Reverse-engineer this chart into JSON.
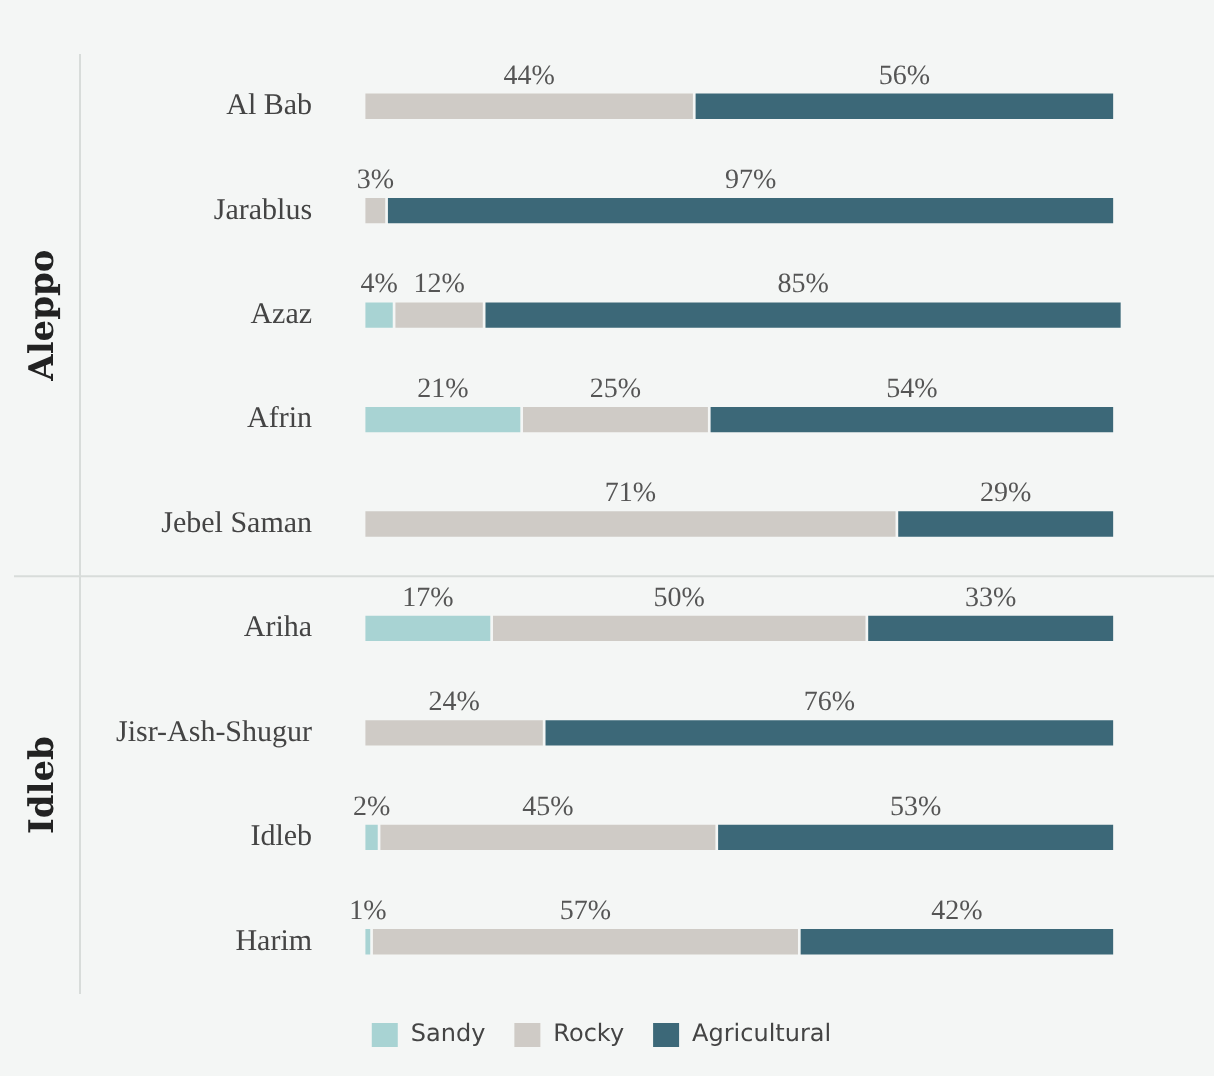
{
  "chart_data": {
    "type": "bar",
    "orientation": "horizontal",
    "stacked": true,
    "legend": "bottom",
    "categories": [
      "Al Bab",
      "Jarablus",
      "Azaz",
      "Afrin",
      "Jebel Saman",
      "Ariha",
      "Jisr-Ash-Shugur",
      "Idleb",
      "Harim"
    ],
    "series": [
      {
        "name": "Sandy",
        "color": "#a8d3d3",
        "values": [
          null,
          null,
          4,
          21,
          null,
          17,
          null,
          2,
          1
        ],
        "value_labels": [
          null,
          null,
          "4%",
          "21%",
          null,
          "17%",
          null,
          "2%",
          "1%"
        ]
      },
      {
        "name": "Rocky",
        "color": "#cfcbc6",
        "values": [
          44,
          3,
          12,
          25,
          71,
          50,
          24,
          45,
          57
        ],
        "value_labels": [
          "44%",
          "3%",
          "12%",
          "25%",
          "71%",
          "50%",
          "24%",
          "45%",
          "57%"
        ]
      },
      {
        "name": "Agricultural",
        "color": "#3c6878",
        "values": [
          56,
          97,
          85,
          54,
          29,
          33,
          76,
          53,
          42
        ],
        "value_labels": [
          "56%",
          "97%",
          "85%",
          "54%",
          "29%",
          "33%",
          "76%",
          "53%",
          "42%"
        ]
      }
    ],
    "annotations": [
      "Aleppo",
      "Idleb"
    ]
  }
}
